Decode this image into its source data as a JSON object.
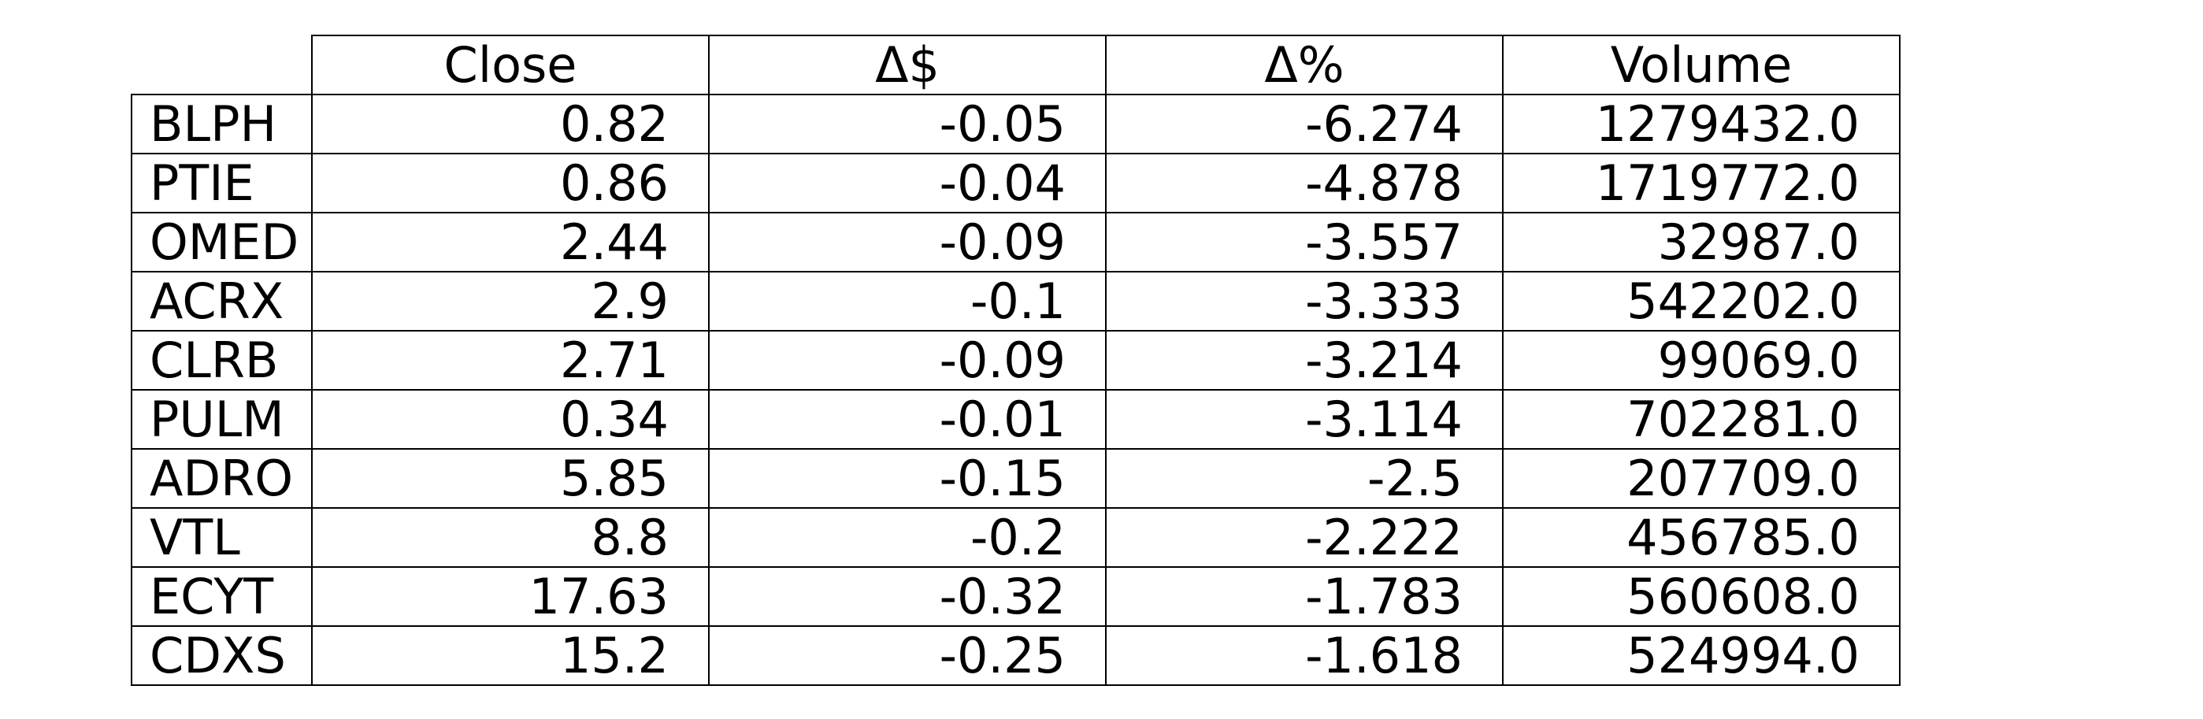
{
  "chart_data": {
    "type": "table",
    "columns": [
      "Close",
      "Δ$",
      "Δ%",
      "Volume"
    ],
    "rows": [
      {
        "label": "BLPH",
        "values": [
          "0.82",
          "-0.05",
          "-6.274",
          "1279432.0"
        ]
      },
      {
        "label": "PTIE",
        "values": [
          "0.86",
          "-0.04",
          "-4.878",
          "1719772.0"
        ]
      },
      {
        "label": "OMED",
        "values": [
          "2.44",
          "-0.09",
          "-3.557",
          "32987.0"
        ]
      },
      {
        "label": "ACRX",
        "values": [
          "2.9",
          "-0.1",
          "-3.333",
          "542202.0"
        ]
      },
      {
        "label": "CLRB",
        "values": [
          "2.71",
          "-0.09",
          "-3.214",
          "99069.0"
        ]
      },
      {
        "label": "PULM",
        "values": [
          "0.34",
          "-0.01",
          "-3.114",
          "702281.0"
        ]
      },
      {
        "label": "ADRO",
        "values": [
          "5.85",
          "-0.15",
          "-2.5",
          "207709.0"
        ]
      },
      {
        "label": "VTL",
        "values": [
          "8.8",
          "-0.2",
          "-2.222",
          "456785.0"
        ]
      },
      {
        "label": "ECYT",
        "values": [
          "17.63",
          "-0.32",
          "-1.783",
          "560608.0"
        ]
      },
      {
        "label": "CDXS",
        "values": [
          "15.2",
          "-0.25",
          "-1.618",
          "524994.0"
        ]
      }
    ]
  }
}
